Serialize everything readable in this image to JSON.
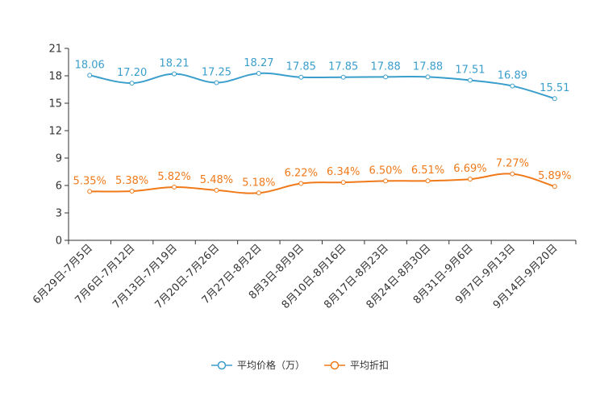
{
  "chart_data": {
    "type": "line",
    "categories": [
      "6月29日-7月5日",
      "7月6日-7月12日",
      "7月13日-7月19日",
      "7月20日-7月26日",
      "7月27日-8月2日",
      "8月3日-8月9日",
      "8月10日-8月16日",
      "8月17日-8月23日",
      "8月24日-8月30日",
      "8月31日-9月6日",
      "9月7日-9月13日",
      "9月14日-9月20日"
    ],
    "ylim": [
      0,
      21
    ],
    "yticks": [
      "0",
      "3",
      "6",
      "9",
      "12",
      "15",
      "18",
      "21"
    ],
    "series": [
      {
        "name": "平均价格（万）",
        "color": "#3a9ecc",
        "values": [
          18.06,
          17.2,
          18.21,
          17.25,
          18.27,
          17.85,
          17.85,
          17.88,
          17.88,
          17.51,
          16.89,
          15.51
        ],
        "labels": [
          "18.06",
          "17.20",
          "18.21",
          "17.25",
          "18.27",
          "17.85",
          "17.85",
          "17.88",
          "17.88",
          "17.51",
          "16.89",
          "15.51"
        ]
      },
      {
        "name": "平均折扣",
        "color": "#f07a1a",
        "values": [
          5.35,
          5.38,
          5.82,
          5.48,
          5.18,
          6.22,
          6.34,
          6.5,
          6.51,
          6.69,
          7.27,
          5.89
        ],
        "labels": [
          "5.35%",
          "5.38%",
          "5.82%",
          "5.48%",
          "5.18%",
          "6.22%",
          "6.34%",
          "6.50%",
          "6.51%",
          "6.69%",
          "7.27%",
          "5.89%"
        ]
      }
    ]
  }
}
